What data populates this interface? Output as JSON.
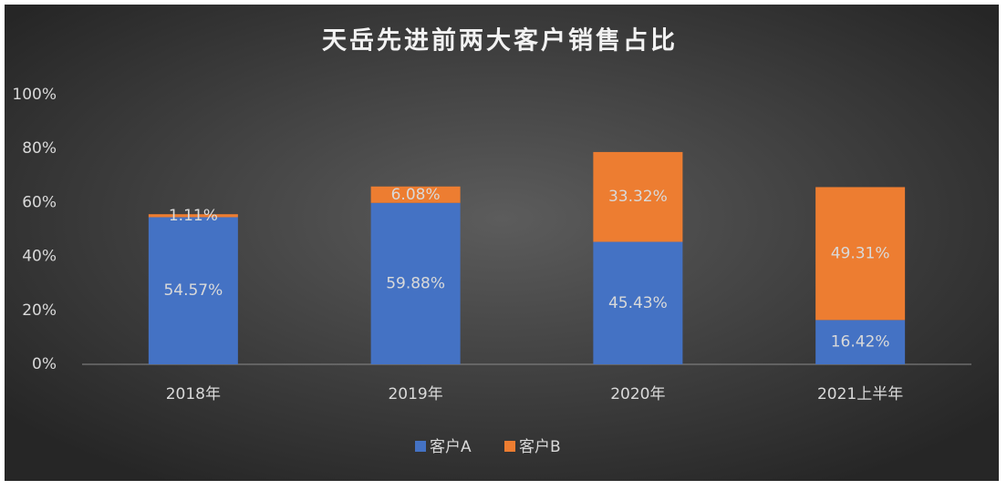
{
  "chart_data": {
    "type": "stacked-bar",
    "title": "天岳先进前两大客户销售占比",
    "categories": [
      "2018年",
      "2019年",
      "2020年",
      "2021上半年"
    ],
    "series": [
      {
        "name": "客户A",
        "color": "#4472c4",
        "values": [
          54.57,
          59.88,
          45.43,
          16.42
        ],
        "value_labels": [
          "54.57%",
          "59.88%",
          "45.43%",
          "16.42%"
        ]
      },
      {
        "name": "客户B",
        "color": "#ed7d31",
        "values": [
          1.11,
          6.08,
          33.32,
          49.31
        ],
        "value_labels": [
          "1.11%",
          "6.08%",
          "33.32%",
          "49.31%"
        ]
      }
    ],
    "ylim": [
      0,
      100
    ],
    "yticks": [
      {
        "value": 0,
        "label": "0%"
      },
      {
        "value": 20,
        "label": "20%"
      },
      {
        "value": 40,
        "label": "40%"
      },
      {
        "value": 60,
        "label": "60%"
      },
      {
        "value": 80,
        "label": "80%"
      },
      {
        "value": 100,
        "label": "100%"
      }
    ],
    "grid": false,
    "legend": "bottom"
  }
}
